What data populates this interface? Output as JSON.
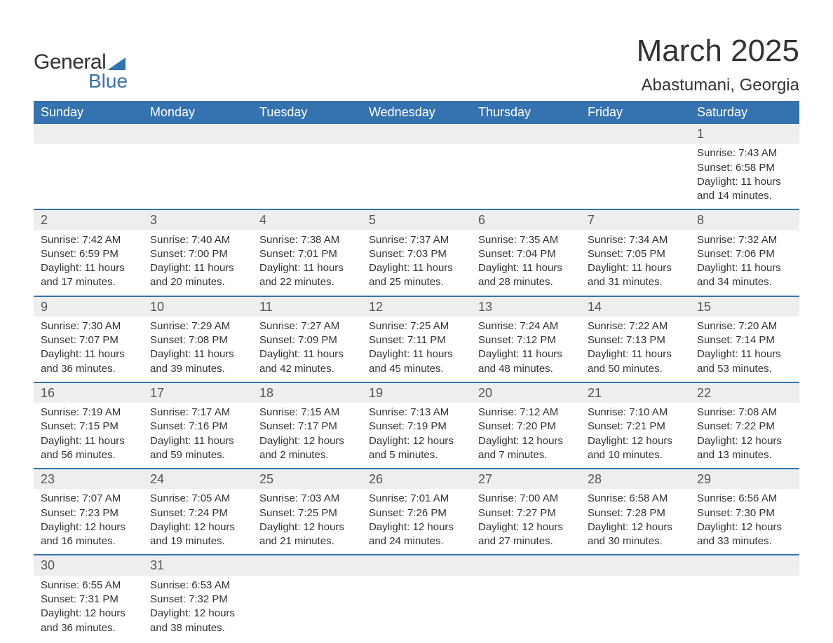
{
  "brand": {
    "word1": "General",
    "word2": "Blue",
    "accent_color": "#3572b0",
    "text_color": "#333333"
  },
  "title": "March 2025",
  "location": "Abastumani, Georgia",
  "colors": {
    "header_bg": "#3572b0",
    "header_text": "#ffffff",
    "daynum_bg": "#eeeeee",
    "row_divider": "#3572b0",
    "body_text": "#333333",
    "page_bg": "#ffffff"
  },
  "typography": {
    "title_fontsize_pt": 33,
    "location_fontsize_pt": 18,
    "header_fontsize_pt": 14,
    "daynum_fontsize_pt": 14,
    "body_fontsize_pt": 11,
    "font_family": "Arial"
  },
  "columns": [
    "Sunday",
    "Monday",
    "Tuesday",
    "Wednesday",
    "Thursday",
    "Friday",
    "Saturday"
  ],
  "weeks": [
    {
      "days": [
        null,
        null,
        null,
        null,
        null,
        null,
        {
          "n": "1",
          "sunrise": "Sunrise: 7:43 AM",
          "sunset": "Sunset: 6:58 PM",
          "d1": "Daylight: 11 hours",
          "d2": "and 14 minutes."
        }
      ]
    },
    {
      "days": [
        {
          "n": "2",
          "sunrise": "Sunrise: 7:42 AM",
          "sunset": "Sunset: 6:59 PM",
          "d1": "Daylight: 11 hours",
          "d2": "and 17 minutes."
        },
        {
          "n": "3",
          "sunrise": "Sunrise: 7:40 AM",
          "sunset": "Sunset: 7:00 PM",
          "d1": "Daylight: 11 hours",
          "d2": "and 20 minutes."
        },
        {
          "n": "4",
          "sunrise": "Sunrise: 7:38 AM",
          "sunset": "Sunset: 7:01 PM",
          "d1": "Daylight: 11 hours",
          "d2": "and 22 minutes."
        },
        {
          "n": "5",
          "sunrise": "Sunrise: 7:37 AM",
          "sunset": "Sunset: 7:03 PM",
          "d1": "Daylight: 11 hours",
          "d2": "and 25 minutes."
        },
        {
          "n": "6",
          "sunrise": "Sunrise: 7:35 AM",
          "sunset": "Sunset: 7:04 PM",
          "d1": "Daylight: 11 hours",
          "d2": "and 28 minutes."
        },
        {
          "n": "7",
          "sunrise": "Sunrise: 7:34 AM",
          "sunset": "Sunset: 7:05 PM",
          "d1": "Daylight: 11 hours",
          "d2": "and 31 minutes."
        },
        {
          "n": "8",
          "sunrise": "Sunrise: 7:32 AM",
          "sunset": "Sunset: 7:06 PM",
          "d1": "Daylight: 11 hours",
          "d2": "and 34 minutes."
        }
      ]
    },
    {
      "days": [
        {
          "n": "9",
          "sunrise": "Sunrise: 7:30 AM",
          "sunset": "Sunset: 7:07 PM",
          "d1": "Daylight: 11 hours",
          "d2": "and 36 minutes."
        },
        {
          "n": "10",
          "sunrise": "Sunrise: 7:29 AM",
          "sunset": "Sunset: 7:08 PM",
          "d1": "Daylight: 11 hours",
          "d2": "and 39 minutes."
        },
        {
          "n": "11",
          "sunrise": "Sunrise: 7:27 AM",
          "sunset": "Sunset: 7:09 PM",
          "d1": "Daylight: 11 hours",
          "d2": "and 42 minutes."
        },
        {
          "n": "12",
          "sunrise": "Sunrise: 7:25 AM",
          "sunset": "Sunset: 7:11 PM",
          "d1": "Daylight: 11 hours",
          "d2": "and 45 minutes."
        },
        {
          "n": "13",
          "sunrise": "Sunrise: 7:24 AM",
          "sunset": "Sunset: 7:12 PM",
          "d1": "Daylight: 11 hours",
          "d2": "and 48 minutes."
        },
        {
          "n": "14",
          "sunrise": "Sunrise: 7:22 AM",
          "sunset": "Sunset: 7:13 PM",
          "d1": "Daylight: 11 hours",
          "d2": "and 50 minutes."
        },
        {
          "n": "15",
          "sunrise": "Sunrise: 7:20 AM",
          "sunset": "Sunset: 7:14 PM",
          "d1": "Daylight: 11 hours",
          "d2": "and 53 minutes."
        }
      ]
    },
    {
      "days": [
        {
          "n": "16",
          "sunrise": "Sunrise: 7:19 AM",
          "sunset": "Sunset: 7:15 PM",
          "d1": "Daylight: 11 hours",
          "d2": "and 56 minutes."
        },
        {
          "n": "17",
          "sunrise": "Sunrise: 7:17 AM",
          "sunset": "Sunset: 7:16 PM",
          "d1": "Daylight: 11 hours",
          "d2": "and 59 minutes."
        },
        {
          "n": "18",
          "sunrise": "Sunrise: 7:15 AM",
          "sunset": "Sunset: 7:17 PM",
          "d1": "Daylight: 12 hours",
          "d2": "and 2 minutes."
        },
        {
          "n": "19",
          "sunrise": "Sunrise: 7:13 AM",
          "sunset": "Sunset: 7:19 PM",
          "d1": "Daylight: 12 hours",
          "d2": "and 5 minutes."
        },
        {
          "n": "20",
          "sunrise": "Sunrise: 7:12 AM",
          "sunset": "Sunset: 7:20 PM",
          "d1": "Daylight: 12 hours",
          "d2": "and 7 minutes."
        },
        {
          "n": "21",
          "sunrise": "Sunrise: 7:10 AM",
          "sunset": "Sunset: 7:21 PM",
          "d1": "Daylight: 12 hours",
          "d2": "and 10 minutes."
        },
        {
          "n": "22",
          "sunrise": "Sunrise: 7:08 AM",
          "sunset": "Sunset: 7:22 PM",
          "d1": "Daylight: 12 hours",
          "d2": "and 13 minutes."
        }
      ]
    },
    {
      "days": [
        {
          "n": "23",
          "sunrise": "Sunrise: 7:07 AM",
          "sunset": "Sunset: 7:23 PM",
          "d1": "Daylight: 12 hours",
          "d2": "and 16 minutes."
        },
        {
          "n": "24",
          "sunrise": "Sunrise: 7:05 AM",
          "sunset": "Sunset: 7:24 PM",
          "d1": "Daylight: 12 hours",
          "d2": "and 19 minutes."
        },
        {
          "n": "25",
          "sunrise": "Sunrise: 7:03 AM",
          "sunset": "Sunset: 7:25 PM",
          "d1": "Daylight: 12 hours",
          "d2": "and 21 minutes."
        },
        {
          "n": "26",
          "sunrise": "Sunrise: 7:01 AM",
          "sunset": "Sunset: 7:26 PM",
          "d1": "Daylight: 12 hours",
          "d2": "and 24 minutes."
        },
        {
          "n": "27",
          "sunrise": "Sunrise: 7:00 AM",
          "sunset": "Sunset: 7:27 PM",
          "d1": "Daylight: 12 hours",
          "d2": "and 27 minutes."
        },
        {
          "n": "28",
          "sunrise": "Sunrise: 6:58 AM",
          "sunset": "Sunset: 7:28 PM",
          "d1": "Daylight: 12 hours",
          "d2": "and 30 minutes."
        },
        {
          "n": "29",
          "sunrise": "Sunrise: 6:56 AM",
          "sunset": "Sunset: 7:30 PM",
          "d1": "Daylight: 12 hours",
          "d2": "and 33 minutes."
        }
      ]
    },
    {
      "days": [
        {
          "n": "30",
          "sunrise": "Sunrise: 6:55 AM",
          "sunset": "Sunset: 7:31 PM",
          "d1": "Daylight: 12 hours",
          "d2": "and 36 minutes."
        },
        {
          "n": "31",
          "sunrise": "Sunrise: 6:53 AM",
          "sunset": "Sunset: 7:32 PM",
          "d1": "Daylight: 12 hours",
          "d2": "and 38 minutes."
        },
        null,
        null,
        null,
        null,
        null
      ]
    }
  ]
}
